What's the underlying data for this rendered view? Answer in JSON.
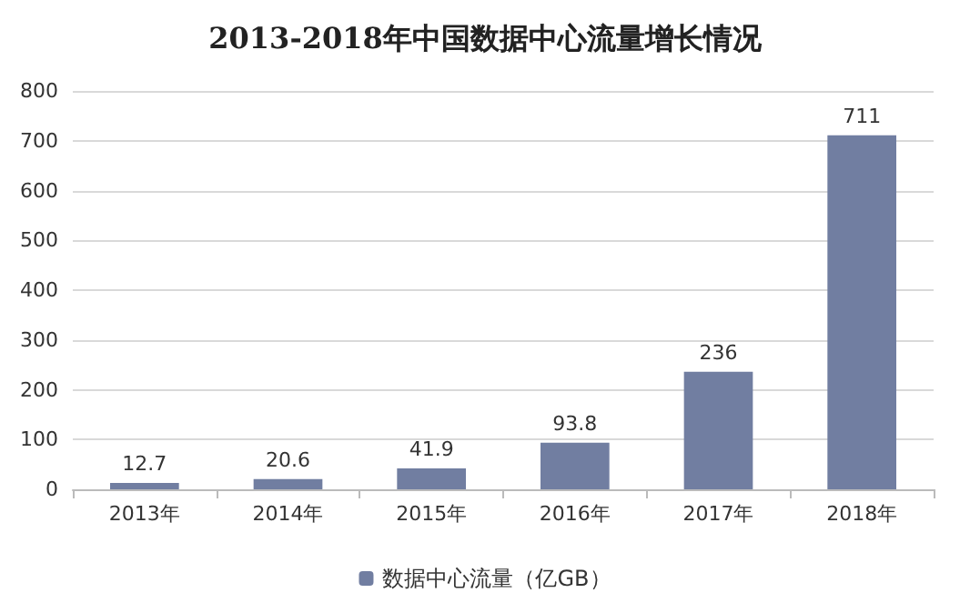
{
  "chart_data": {
    "type": "bar",
    "title": "2013-2018年中国数据中心流量增长情况",
    "categories": [
      "2013年",
      "2014年",
      "2015年",
      "2016年",
      "2017年",
      "2018年"
    ],
    "series": [
      {
        "name": "数据中心流量（亿GB）",
        "color": "#717ea1",
        "values": [
          12.7,
          20.6,
          41.9,
          93.8,
          236,
          711
        ]
      }
    ],
    "ylim": [
      0,
      800
    ],
    "yticks": [
      0,
      100,
      200,
      300,
      400,
      500,
      600,
      700,
      800
    ],
    "grid": "y",
    "legend": "bottom",
    "data_labels": true
  }
}
